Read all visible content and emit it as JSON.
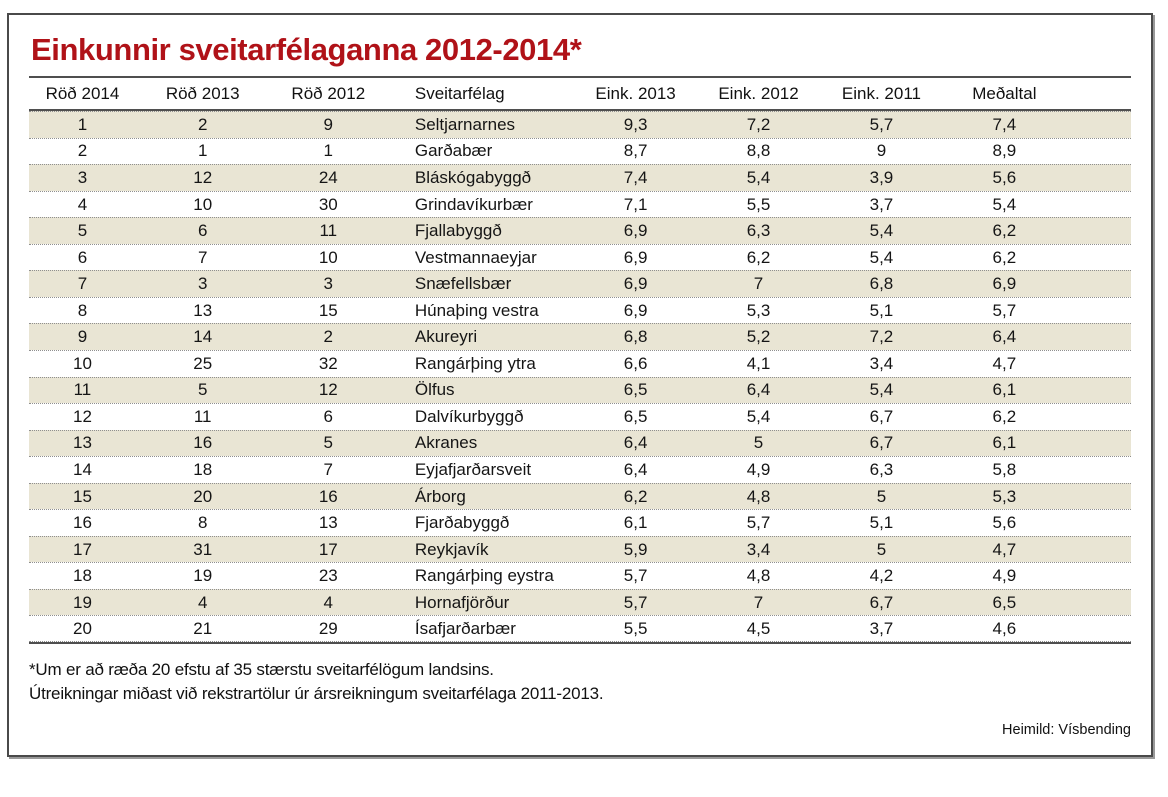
{
  "panel": {
    "title": "Einkunnir sveitarfélaganna 2012-2014*",
    "footnote_line1": "*Um er að ræða 20 efstu af 35 stærstu sveitarfélögum landsins.",
    "footnote_line2": "Útreikningar miðast við rekstrartölur úr ársreikningum sveitarfélaga 2011-2013.",
    "source": "Heimild: Vísbending"
  },
  "colors": {
    "title_red": "#b01218",
    "row_stripe_beige": "#e9e5d4",
    "rule_grey": "#4f4f4f",
    "dotted_separator_grey": "#8f8f8f",
    "text": "#151515"
  },
  "chart_data": {
    "type": "table",
    "title": "Einkunnir sveitarfélaganna 2012-2014*",
    "columns": [
      "Röð 2014",
      "Röð 2013",
      "Röð 2012",
      "Sveitarfélag",
      "Eink. 2013",
      "Eink. 2012",
      "Eink. 2011",
      "Meðaltal"
    ],
    "rows": [
      [
        "1",
        "2",
        "9",
        "Seltjarnarnes",
        "9,3",
        "7,2",
        "5,7",
        "7,4"
      ],
      [
        "2",
        "1",
        "1",
        "Garðabær",
        "8,7",
        "8,8",
        "9",
        "8,9"
      ],
      [
        "3",
        "12",
        "24",
        "Bláskógabyggð",
        "7,4",
        "5,4",
        "3,9",
        "5,6"
      ],
      [
        "4",
        "10",
        "30",
        "Grindavíkurbær",
        "7,1",
        "5,5",
        "3,7",
        "5,4"
      ],
      [
        "5",
        "6",
        "11",
        "Fjallabyggð",
        "6,9",
        "6,3",
        "5,4",
        "6,2"
      ],
      [
        "6",
        "7",
        "10",
        "Vestmannaeyjar",
        "6,9",
        "6,2",
        "5,4",
        "6,2"
      ],
      [
        "7",
        "3",
        "3",
        "Snæfellsbær",
        "6,9",
        "7",
        "6,8",
        "6,9"
      ],
      [
        "8",
        "13",
        "15",
        "Húnaþing vestra",
        "6,9",
        "5,3",
        "5,1",
        "5,7"
      ],
      [
        "9",
        "14",
        "2",
        "Akureyri",
        "6,8",
        "5,2",
        "7,2",
        "6,4"
      ],
      [
        "10",
        "25",
        "32",
        "Rangárþing ytra",
        "6,6",
        "4,1",
        "3,4",
        "4,7"
      ],
      [
        "11",
        "5",
        "12",
        "Ölfus",
        "6,5",
        "6,4",
        "5,4",
        "6,1"
      ],
      [
        "12",
        "11",
        "6",
        "Dalvíkurbyggð",
        "6,5",
        "5,4",
        "6,7",
        "6,2"
      ],
      [
        "13",
        "16",
        "5",
        "Akranes",
        "6,4",
        "5",
        "6,7",
        "6,1"
      ],
      [
        "14",
        "18",
        "7",
        "Eyjafjarðarsveit",
        "6,4",
        "4,9",
        "6,3",
        "5,8"
      ],
      [
        "15",
        "20",
        "16",
        "Árborg",
        "6,2",
        "4,8",
        "5",
        "5,3"
      ],
      [
        "16",
        "8",
        "13",
        "Fjarðabyggð",
        "6,1",
        "5,7",
        "5,1",
        "5,6"
      ],
      [
        "17",
        "31",
        "17",
        "Reykjavík",
        "5,9",
        "3,4",
        "5",
        "4,7"
      ],
      [
        "18",
        "19",
        "23",
        "Rangárþing eystra",
        "5,7",
        "4,8",
        "4,2",
        "4,9"
      ],
      [
        "19",
        "4",
        "4",
        "Hornafjörður",
        "5,7",
        "7",
        "6,7",
        "6,5"
      ],
      [
        "20",
        "21",
        "29",
        "Ísafjarðarbær",
        "5,5",
        "4,5",
        "3,7",
        "4,6"
      ]
    ],
    "layout": {
      "striped_rows": "odd",
      "stripe_color": "#e9e5d4",
      "grid": "dotted horizontal separators, solid rules above/below header and below body",
      "legend": "none"
    }
  }
}
